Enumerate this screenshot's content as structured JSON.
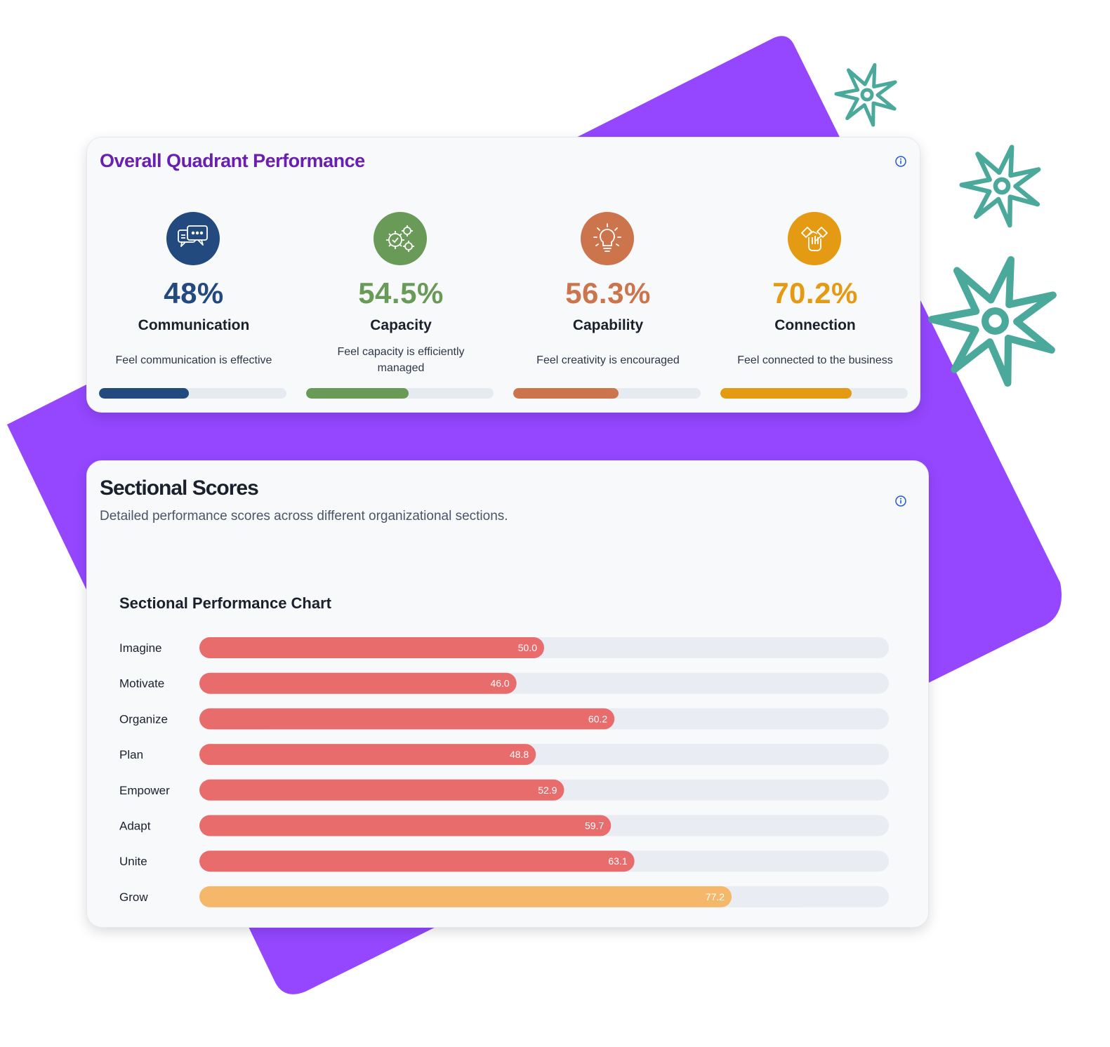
{
  "quadrant": {
    "title": "Overall Quadrant Performance",
    "items": [
      {
        "percent": "48%",
        "value": 48,
        "name": "Communication",
        "description": "Feel communication is effective",
        "color": "#234a7f",
        "icon": "chat-bubbles-icon"
      },
      {
        "percent": "54.5%",
        "value": 54.5,
        "name": "Capacity",
        "description": "Feel capacity is efficiently managed",
        "color": "#6a9a58",
        "icon": "gears-icon"
      },
      {
        "percent": "56.3%",
        "value": 56.3,
        "name": "Capability",
        "description": "Feel creativity is encouraged",
        "color": "#cc744b",
        "icon": "lightbulb-icon"
      },
      {
        "percent": "70.2%",
        "value": 70.2,
        "name": "Connection",
        "description": "Feel connected to the business",
        "color": "#e49a12",
        "icon": "handshake-icon"
      }
    ]
  },
  "sectional": {
    "title": "Sectional Scores",
    "subtitle": "Detailed performance scores across different organizational sections."
  },
  "chart_data": {
    "type": "bar",
    "orientation": "horizontal",
    "title": "Sectional Performance Chart",
    "categories": [
      "Imagine",
      "Motivate",
      "Organize",
      "Plan",
      "Empower",
      "Adapt",
      "Unite",
      "Grow"
    ],
    "values": [
      50.0,
      46.0,
      60.2,
      48.8,
      52.9,
      59.7,
      63.1,
      77.2
    ],
    "value_labels": [
      "50.0",
      "46.0",
      "60.2",
      "48.8",
      "52.9",
      "59.7",
      "63.1",
      "77.2"
    ],
    "colors": [
      "#e96c6c",
      "#e96c6c",
      "#e96c6c",
      "#e96c6c",
      "#e96c6c",
      "#e96c6c",
      "#e96c6c",
      "#f5b86b"
    ],
    "xlim": [
      0,
      100
    ],
    "grid": false,
    "legend": "none"
  },
  "colors": {
    "accent_purple": "#9447ff",
    "title_purple": "#6a1fb0",
    "star_teal": "#4aa99b",
    "track": "#e6eaf1",
    "info_blue": "#1f5bd6"
  }
}
